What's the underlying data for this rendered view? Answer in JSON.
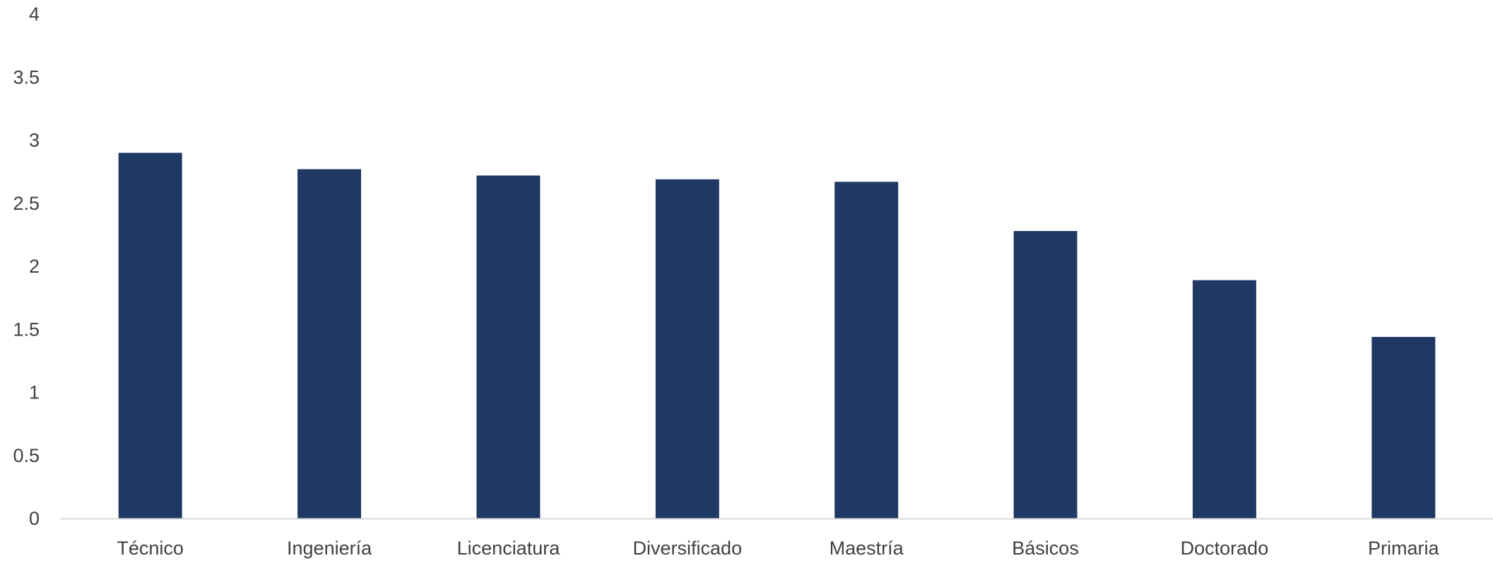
{
  "chart_data": {
    "type": "bar",
    "title": "",
    "xlabel": "",
    "ylabel": "",
    "categories": [
      "Técnico",
      "Ingeniería",
      "Licenciatura",
      "Diversificado",
      "Maestría",
      "Básicos",
      "Doctorado",
      "Primaria"
    ],
    "values": [
      2.9,
      2.77,
      2.72,
      2.69,
      2.67,
      2.28,
      1.89,
      1.44
    ],
    "ylim": [
      0,
      4
    ],
    "yticks": [
      "0",
      "0.5",
      "1",
      "1.5",
      "2",
      "2.5",
      "3",
      "3.5",
      "4"
    ],
    "grid": false,
    "legend": "none",
    "colors": {
      "bar": "#1F3864",
      "axis": "#D9D9D9",
      "text": "#404040"
    }
  }
}
